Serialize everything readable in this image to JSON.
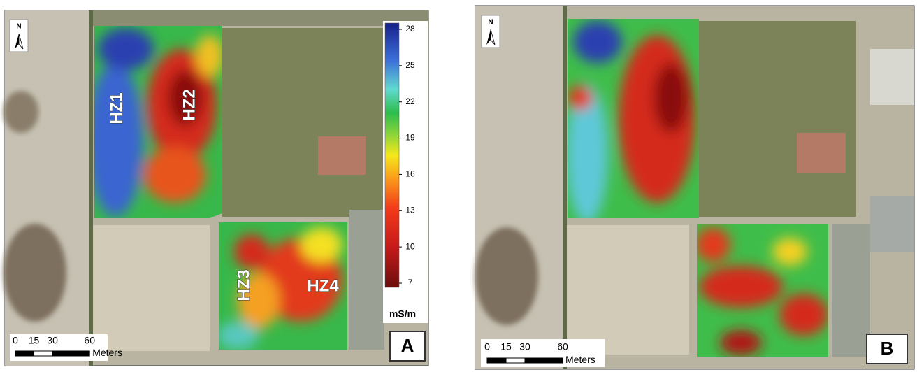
{
  "panels": [
    {
      "label": "A",
      "north": "N",
      "zones": [
        "HZ1",
        "HZ2",
        "HZ3",
        "HZ4"
      ],
      "colorbar": {
        "ticks": [
          28,
          25,
          22,
          19,
          16,
          13,
          10,
          7
        ],
        "unit": "mS/m"
      },
      "scalebar": {
        "ticks": [
          0,
          15,
          30,
          60
        ],
        "unit": "Meters"
      }
    },
    {
      "label": "B",
      "north": "N",
      "scalebar": {
        "ticks": [
          0,
          15,
          30,
          60
        ],
        "unit": "Meters"
      }
    }
  ]
}
